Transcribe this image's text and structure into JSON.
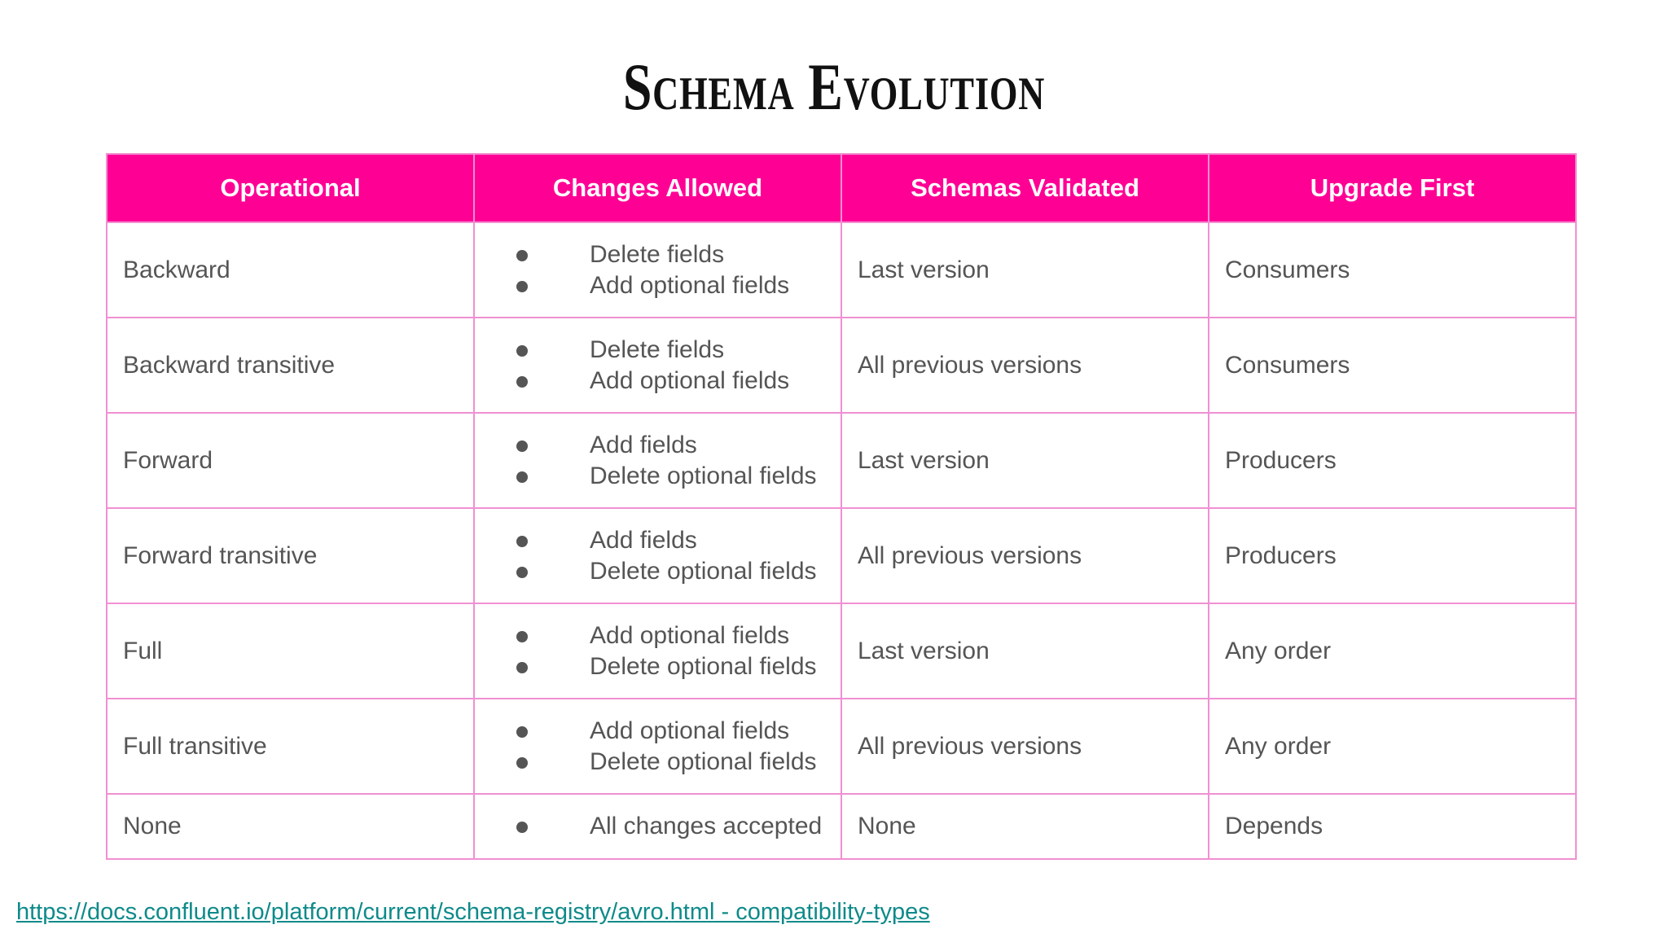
{
  "slide": {
    "title": "Schema Evolution"
  },
  "table": {
    "headers": [
      "Operational",
      "Changes Allowed",
      "Schemas Validated",
      "Upgrade First"
    ],
    "rows": [
      {
        "mode": "Backward",
        "changes": [
          "Delete fields",
          "Add optional fields"
        ],
        "validated": "Last version",
        "upgrade": "Consumers"
      },
      {
        "mode": "Backward transitive",
        "changes": [
          "Delete fields",
          "Add optional fields"
        ],
        "validated": "All previous versions",
        "upgrade": "Consumers"
      },
      {
        "mode": "Forward",
        "changes": [
          "Add fields",
          "Delete optional fields"
        ],
        "validated": "Last version",
        "upgrade": "Producers"
      },
      {
        "mode": "Forward transitive",
        "changes": [
          "Add fields",
          "Delete optional fields"
        ],
        "validated": "All previous versions",
        "upgrade": "Producers"
      },
      {
        "mode": "Full",
        "changes": [
          "Add optional fields",
          "Delete optional fields"
        ],
        "validated": "Last version",
        "upgrade": "Any order"
      },
      {
        "mode": "Full transitive",
        "changes": [
          "Add optional fields",
          "Delete optional fields"
        ],
        "validated": "All previous versions",
        "upgrade": "Any order"
      },
      {
        "mode": "None",
        "changes": [
          "All changes accepted"
        ],
        "validated": "None",
        "upgrade": "Depends"
      }
    ]
  },
  "footer": {
    "link_text": "https://docs.confluent.io/platform/current/schema-registry/avro.html - compatibility-types"
  },
  "colors": {
    "header_background": "#ff0095",
    "border": "#f090d2",
    "link": "#0f8a8a"
  }
}
